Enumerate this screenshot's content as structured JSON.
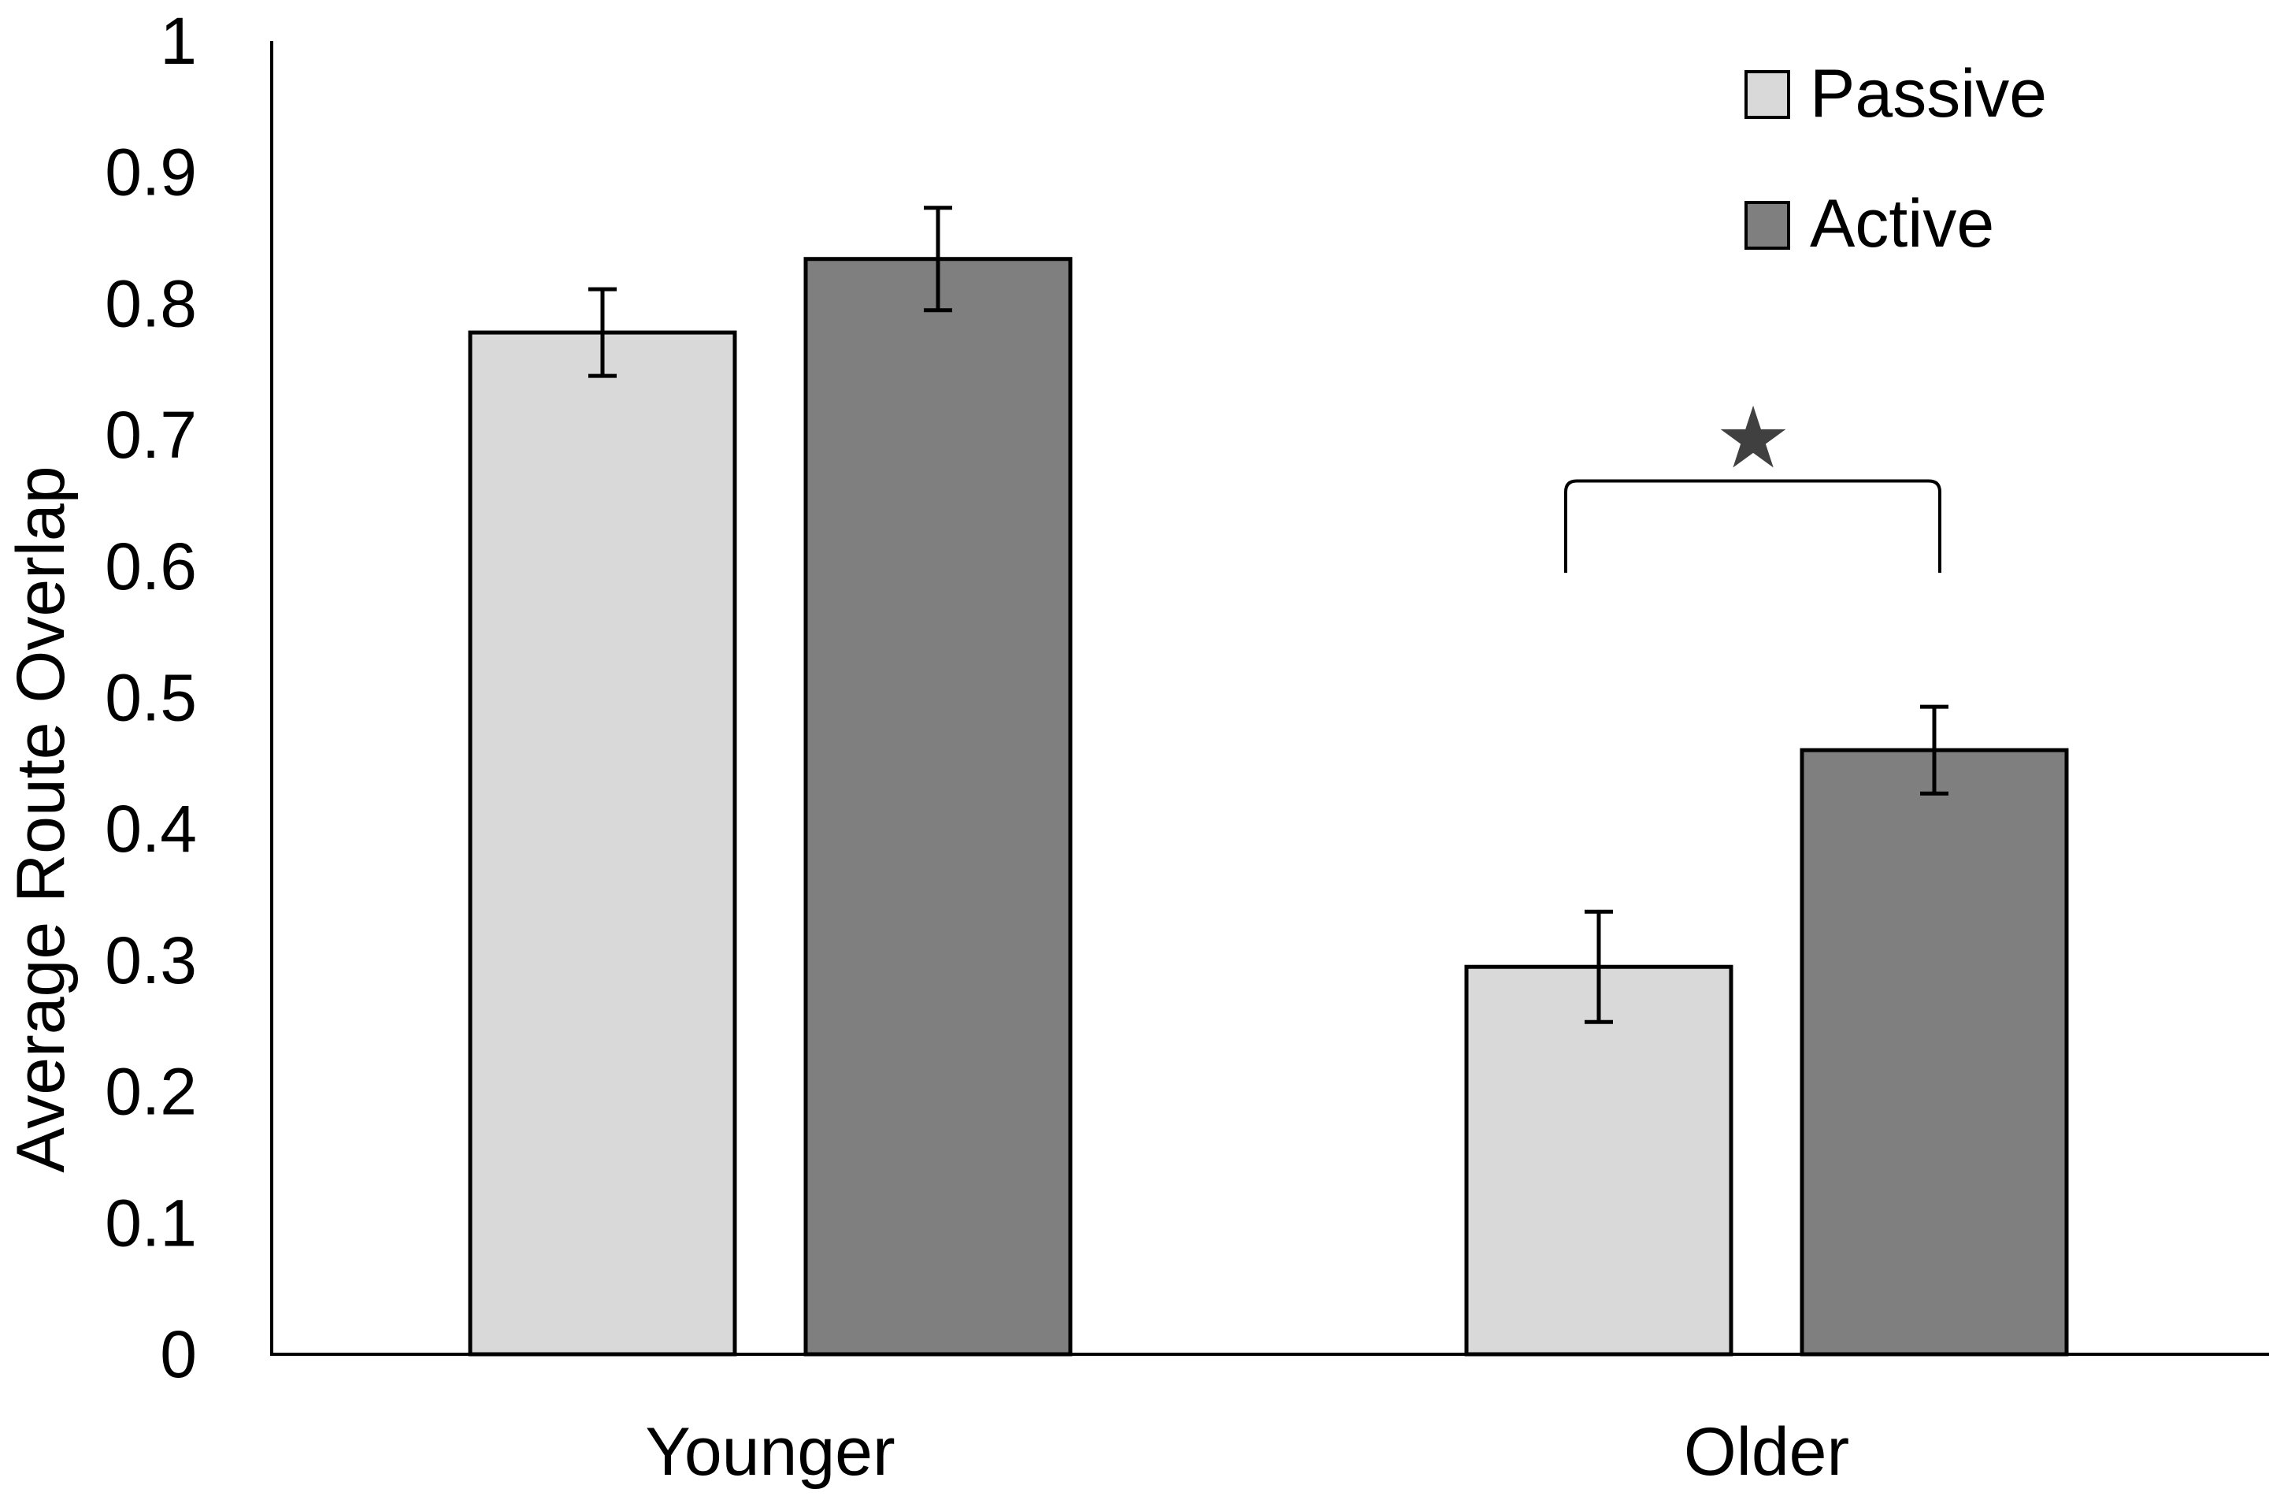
{
  "chart_data": {
    "type": "bar",
    "title": "",
    "xlabel": "",
    "ylabel": "Average Route Overlap",
    "ylim": [
      0,
      1
    ],
    "yticks": [
      0,
      0.1,
      0.2,
      0.3,
      0.4,
      0.5,
      0.6,
      0.7,
      0.8,
      0.9,
      1
    ],
    "ytick_labels": [
      "0",
      "0.1",
      "0.2",
      "0.3",
      "0.4",
      "0.5",
      "0.6",
      "0.7",
      "0.8",
      "0.9",
      "1"
    ],
    "grid": false,
    "legend_position": "top-right",
    "categories": [
      "Younger",
      "Older"
    ],
    "series": [
      {
        "name": "Passive",
        "values": [
          0.778,
          0.295
        ],
        "errors": [
          0.033,
          0.042
        ],
        "color": "#D9D9D9"
      },
      {
        "name": "Active",
        "values": [
          0.834,
          0.46
        ],
        "errors": [
          0.039,
          0.033
        ],
        "color": "#7F7F7F"
      }
    ],
    "annotations": [
      {
        "type": "significance-bracket",
        "category": "Older",
        "symbol": "★",
        "top_value": 0.665,
        "bottom_value": 0.595
      }
    ]
  },
  "colors": {
    "axis": "#000000",
    "bar_outline": "#000000",
    "star": "#404040"
  }
}
